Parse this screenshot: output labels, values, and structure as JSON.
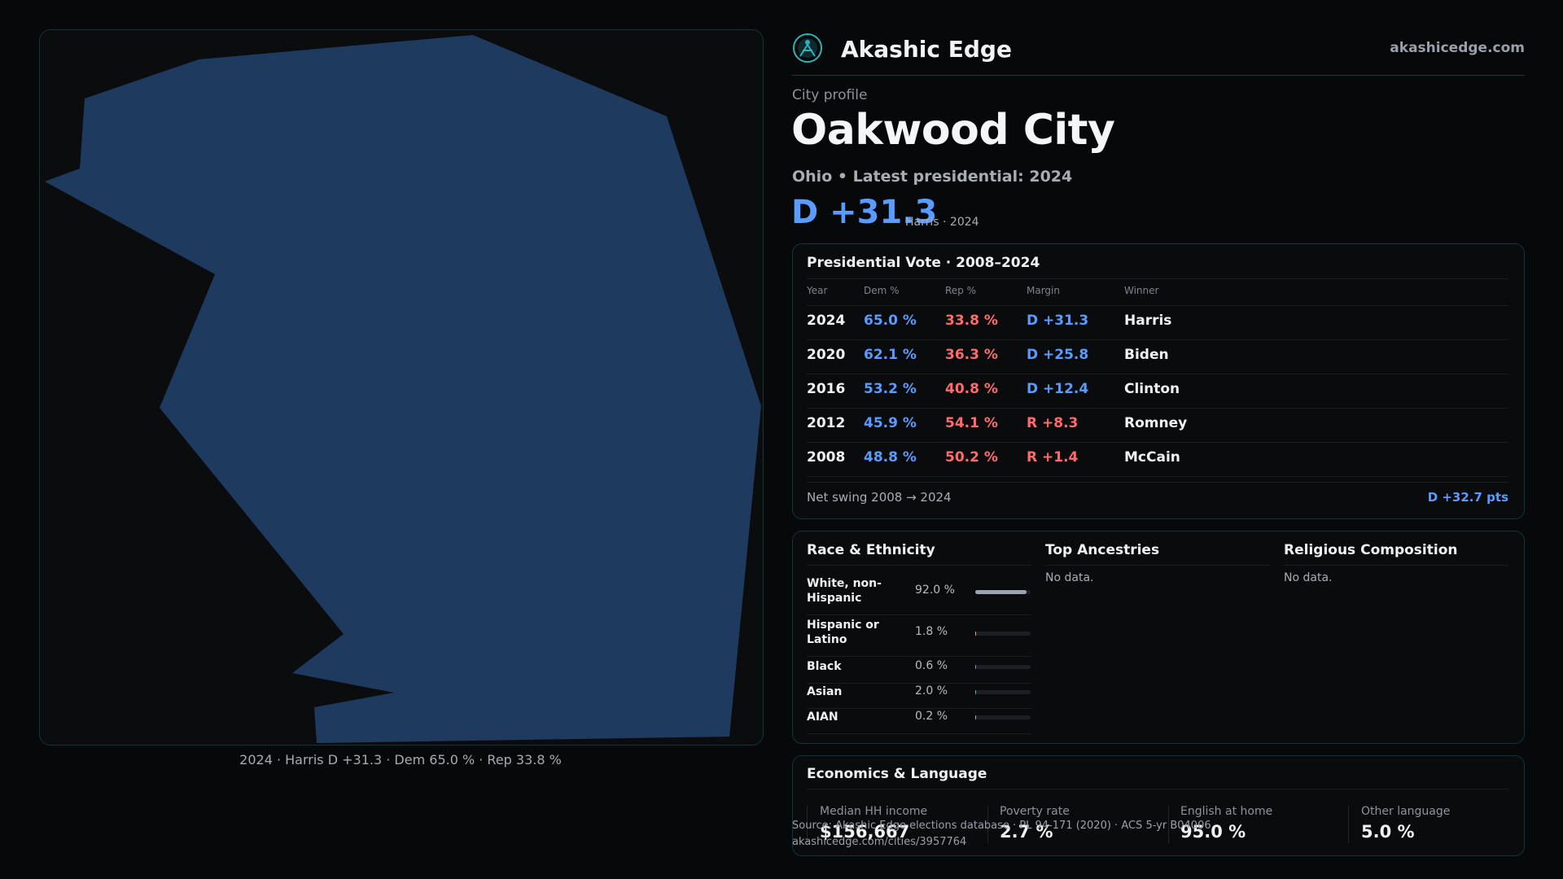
{
  "brand": {
    "name": "Akashic Edge",
    "url": "akashicedge.com",
    "icon": "akashic-logo-icon"
  },
  "profile": {
    "kicker": "City profile",
    "city": "Oakwood City",
    "subtitle": "Ohio • Latest presidential: 2024",
    "margin": "D +31.3",
    "margin_note": "Harris · 2024"
  },
  "map": {
    "caption": "2024 · Harris D +31.3 · Dem 65.0 % · Rep 33.8 %",
    "fill_color": "#1f3a5f",
    "party_shading": "democratic"
  },
  "presidential": {
    "title": "Presidential Vote · 2008–2024",
    "headers": [
      "Year",
      "Dem %",
      "Rep %",
      "Margin",
      "Winner"
    ],
    "rows": [
      {
        "year": "2024",
        "dem": "65.0 %",
        "rep": "33.8 %",
        "margin": "D +31.3",
        "party": "D",
        "winner": "Harris"
      },
      {
        "year": "2020",
        "dem": "62.1 %",
        "rep": "36.3 %",
        "margin": "D +25.8",
        "party": "D",
        "winner": "Biden"
      },
      {
        "year": "2016",
        "dem": "53.2 %",
        "rep": "40.8 %",
        "margin": "D +12.4",
        "party": "D",
        "winner": "Clinton"
      },
      {
        "year": "2012",
        "dem": "45.9 %",
        "rep": "54.1 %",
        "margin": "R +8.3",
        "party": "R",
        "winner": "Romney"
      },
      {
        "year": "2008",
        "dem": "48.8 %",
        "rep": "50.2 %",
        "margin": "R +1.4",
        "party": "R",
        "winner": "McCain"
      }
    ],
    "swing_label": "Net swing 2008 → 2024",
    "swing_value": "D +32.7 pts"
  },
  "race": {
    "title": "Race & Ethnicity",
    "items": [
      {
        "label": "White, non-Hispanic",
        "value": "92.0 %",
        "fraction": 0.92,
        "color": "#9aa3b0"
      },
      {
        "label": "Hispanic or Latino",
        "value": "1.8 %",
        "fraction": 0.018,
        "color": "#f0a43a"
      },
      {
        "label": "Black",
        "value": "0.6 %",
        "fraction": 0.006,
        "color": "#8b7cf6"
      },
      {
        "label": "Asian",
        "value": "2.0 %",
        "fraction": 0.02,
        "color": "#34c98e"
      },
      {
        "label": "AIAN",
        "value": "0.2 %",
        "fraction": 0.002,
        "color": "#c9a36b"
      }
    ]
  },
  "ancestries": {
    "title": "Top Ancestries",
    "empty": "No data."
  },
  "religion": {
    "title": "Religious Composition",
    "empty": "No data."
  },
  "economics": {
    "title": "Economics & Language",
    "stats": [
      {
        "label": "Median HH income",
        "value": "$156,667"
      },
      {
        "label": "Poverty rate",
        "value": "2.7 %"
      },
      {
        "label": "English at home",
        "value": "95.0 %"
      },
      {
        "label": "Other language",
        "value": "5.0 %"
      }
    ]
  },
  "source": {
    "line1": "Source: Akashic Edge elections database · PL 94-171 (2020) · ACS 5-yr B04006",
    "line2": "akashicedge.com/cities/3957764"
  }
}
